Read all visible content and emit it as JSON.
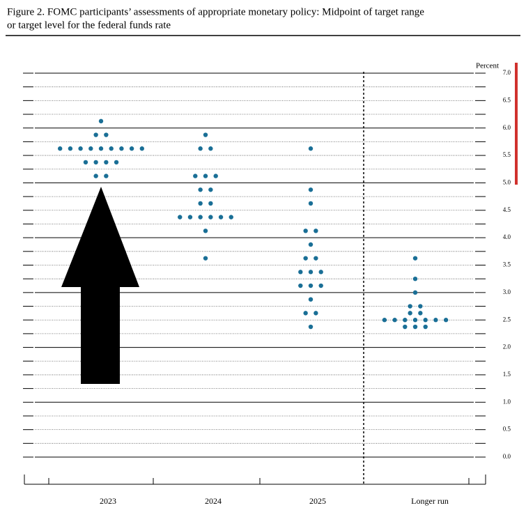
{
  "chart_data": {
    "type": "dotplot",
    "title": [
      "Figure 2.  FOMC participants’ assessments of appropriate monetary policy:  Midpoint of target range",
      "or target level for the federal funds rate"
    ],
    "y_label": "Percent",
    "categories": [
      "2023",
      "2024",
      "2025",
      "Longer run"
    ],
    "color": "#1a6f96",
    "values": [
      [
        {
          "rate": 6.125,
          "count": 1
        },
        {
          "rate": 5.875,
          "count": 2
        },
        {
          "rate": 5.625,
          "count": 9
        },
        {
          "rate": 5.375,
          "count": 4
        },
        {
          "rate": 5.125,
          "count": 2
        }
      ],
      [
        {
          "rate": 5.875,
          "count": 1
        },
        {
          "rate": 5.625,
          "count": 2
        },
        {
          "rate": 5.125,
          "count": 3
        },
        {
          "rate": 4.875,
          "count": 2
        },
        {
          "rate": 4.625,
          "count": 2
        },
        {
          "rate": 4.375,
          "count": 6
        },
        {
          "rate": 4.125,
          "count": 1
        },
        {
          "rate": 3.625,
          "count": 1
        }
      ],
      [
        {
          "rate": 5.625,
          "count": 1
        },
        {
          "rate": 4.875,
          "count": 1
        },
        {
          "rate": 4.625,
          "count": 1
        },
        {
          "rate": 4.125,
          "count": 2
        },
        {
          "rate": 3.875,
          "count": 1
        },
        {
          "rate": 3.625,
          "count": 2
        },
        {
          "rate": 3.375,
          "count": 3
        },
        {
          "rate": 3.125,
          "count": 3
        },
        {
          "rate": 2.875,
          "count": 1
        },
        {
          "rate": 2.625,
          "count": 2
        },
        {
          "rate": 2.375,
          "count": 1
        }
      ],
      [
        {
          "rate": 3.625,
          "count": 1
        },
        {
          "rate": 3.25,
          "count": 1
        },
        {
          "rate": 3.0,
          "count": 1
        },
        {
          "rate": 2.75,
          "count": 2
        },
        {
          "rate": 2.625,
          "count": 2
        },
        {
          "rate": 2.5,
          "count": 7
        },
        {
          "rate": 2.375,
          "count": 3
        }
      ]
    ],
    "ylim": [
      0,
      7
    ],
    "yticks": [
      {
        "value": 0,
        "label": "0.0"
      },
      0.5,
      {
        "value": 1,
        "label": "1.0"
      },
      1.5,
      {
        "value": 2,
        "label": "2.0"
      },
      2.5,
      {
        "value": 3,
        "label": "3.0"
      },
      3.5,
      {
        "value": 4,
        "label": "4.0"
      },
      4.5,
      {
        "value": 5,
        "label": "5.0"
      },
      5.5,
      {
        "value": 6,
        "label": "6.0"
      },
      6.5,
      {
        "value": 7,
        "label": "7.0"
      }
    ],
    "minor_yticks": [
      0.25,
      0.75,
      1.25,
      1.75,
      2.25,
      2.75,
      3.25,
      3.75,
      4.25,
      4.75,
      5.25,
      5.75,
      6.25,
      6.75
    ],
    "grid": true
  }
}
